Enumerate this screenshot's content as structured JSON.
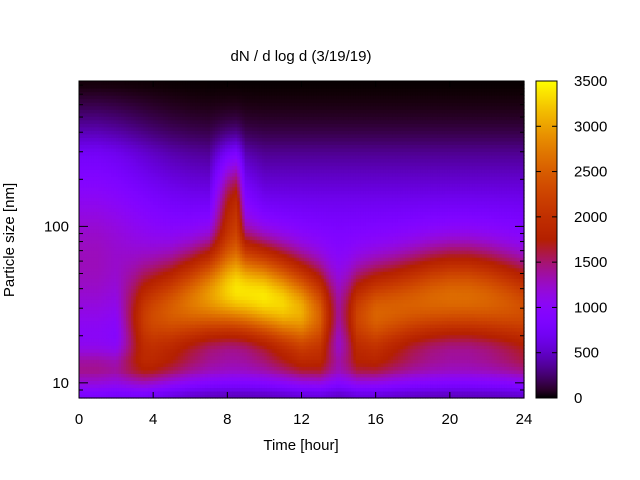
{
  "chart_data": {
    "type": "heatmap",
    "title": "dN / d log d (3/19/19)",
    "xlabel": "Time [hour]",
    "ylabel": "Particle size [nm]",
    "xlim": [
      0,
      24
    ],
    "ylim": [
      8,
      850
    ],
    "y_scale": "log",
    "x_ticks": [
      "0",
      "4",
      "8",
      "12",
      "16",
      "20",
      "24"
    ],
    "y_ticks": [
      "10",
      "100"
    ],
    "colorbar": {
      "range": [
        0,
        3500
      ],
      "ticks": [
        "0",
        "500",
        "1000",
        "1500",
        "2000",
        "2500",
        "3000",
        "3500"
      ],
      "colormap": "gnuplot",
      "colors": [
        "#000000",
        "#6a00ff",
        "#b32ad6",
        "#cc2600",
        "#ff9000",
        "#ffee00"
      ]
    },
    "times": [
      0,
      1,
      2,
      3,
      3.5,
      4,
      5,
      6,
      7,
      8,
      8.5,
      9,
      10,
      11,
      12,
      13,
      13.5,
      14,
      14.5,
      15,
      16,
      17,
      18,
      19,
      20,
      21,
      22,
      23,
      24
    ],
    "sizes_nm": [
      8.5,
      10,
      12,
      14,
      16,
      18,
      20,
      22,
      25,
      28,
      32,
      36,
      40,
      45,
      50,
      56,
      63,
      71,
      80,
      90,
      100,
      112,
      126,
      141,
      158,
      178,
      200,
      224,
      251,
      282,
      316,
      355,
      398,
      447,
      501,
      562,
      631,
      708,
      794,
      850
    ],
    "grid": false,
    "legend": "colorbar-right"
  }
}
